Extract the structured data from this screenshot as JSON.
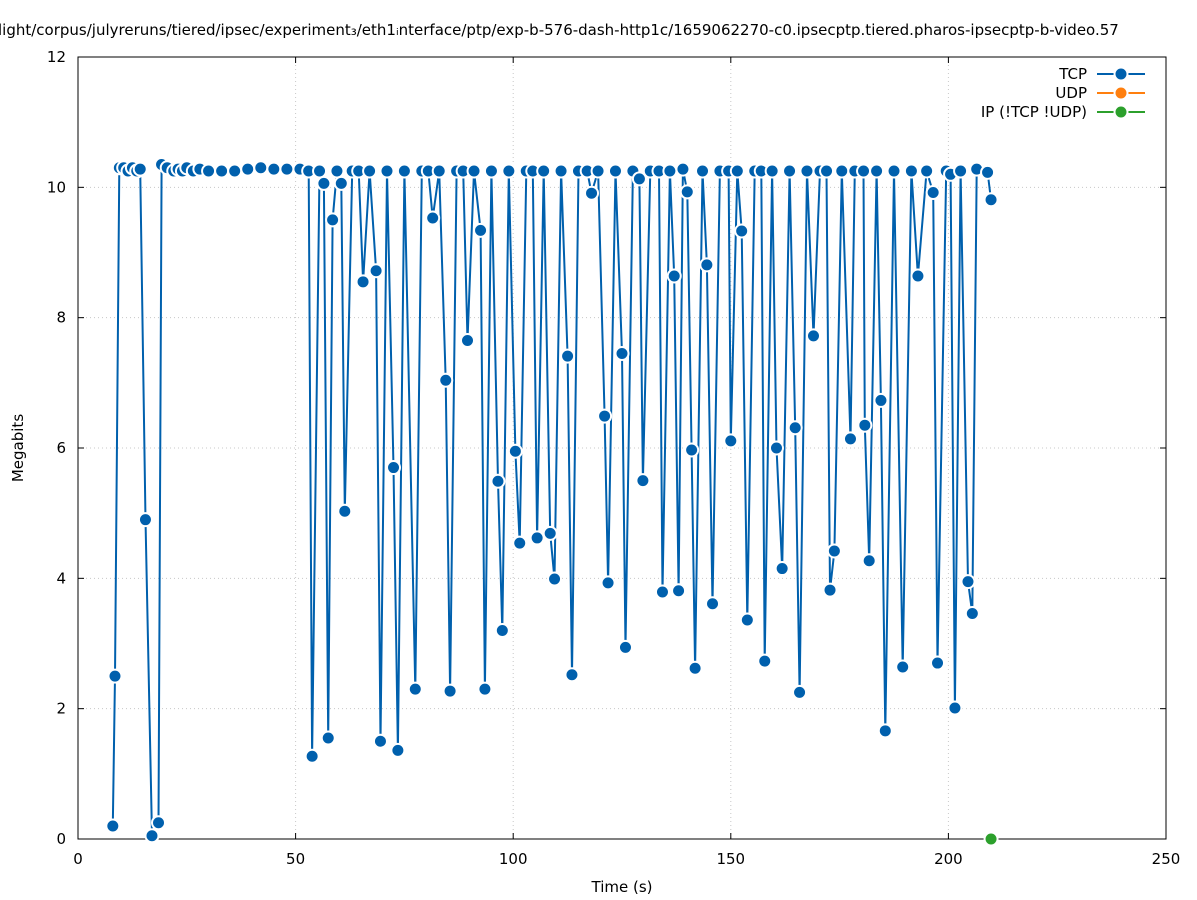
{
  "chart_data": {
    "type": "line",
    "title": "light/corpus/julyreruns/tiered/ipsec/experiment₃/eth1ᵢnterface/ptp/exp-b-576-dash-http1c/1659062270-c0.ipsecptp.tiered.pharos-ipsecptp-b-video.57",
    "xlabel": "Time (s)",
    "ylabel": "Megabits",
    "xlim": [
      0,
      250
    ],
    "ylim": [
      0,
      12
    ],
    "x_ticks": [
      "0",
      "50",
      "100",
      "150",
      "200",
      "250"
    ],
    "y_ticks": [
      "0",
      "2",
      "4",
      "6",
      "8",
      "10",
      "12"
    ],
    "grid": true,
    "legend_position": "top-right",
    "series": [
      {
        "name": "TCP",
        "color": "#0060ad",
        "points": [
          [
            8,
            0.2
          ],
          [
            8.5,
            2.5
          ],
          [
            9.5,
            10.3
          ],
          [
            10.5,
            10.3
          ],
          [
            11.5,
            10.25
          ],
          [
            12.5,
            10.3
          ],
          [
            13.5,
            10.25
          ],
          [
            14.3,
            10.28
          ],
          [
            15.5,
            4.9
          ],
          [
            17,
            0.05
          ],
          [
            18.5,
            0.25
          ],
          [
            19.2,
            10.35
          ],
          [
            20.5,
            10.3
          ],
          [
            22,
            10.25
          ],
          [
            23,
            10.28
          ],
          [
            24,
            10.25
          ],
          [
            25,
            10.3
          ],
          [
            26.5,
            10.25
          ],
          [
            28,
            10.28
          ],
          [
            30,
            10.25
          ],
          [
            33,
            10.25
          ],
          [
            36,
            10.25
          ],
          [
            39,
            10.28
          ],
          [
            42,
            10.3
          ],
          [
            45,
            10.28
          ],
          [
            48,
            10.28
          ],
          [
            51,
            10.28
          ],
          [
            53,
            10.25
          ],
          [
            53.8,
            1.27
          ],
          [
            55.5,
            10.25
          ],
          [
            56.5,
            10.06
          ],
          [
            57.5,
            1.55
          ],
          [
            58.5,
            9.5
          ],
          [
            59.5,
            10.25
          ],
          [
            60.5,
            10.06
          ],
          [
            61.3,
            5.03
          ],
          [
            63,
            10.25
          ],
          [
            64.5,
            10.25
          ],
          [
            65.5,
            8.55
          ],
          [
            67,
            10.25
          ],
          [
            68.5,
            8.72
          ],
          [
            69.5,
            1.5
          ],
          [
            71,
            10.25
          ],
          [
            72.5,
            5.7
          ],
          [
            73.5,
            1.36
          ],
          [
            75,
            10.25
          ],
          [
            77.5,
            2.3
          ],
          [
            79,
            10.25
          ],
          [
            80.5,
            10.25
          ],
          [
            81.5,
            9.53
          ],
          [
            83,
            10.25
          ],
          [
            84.5,
            7.04
          ],
          [
            85.5,
            2.27
          ],
          [
            87,
            10.25
          ],
          [
            88.5,
            10.25
          ],
          [
            89.5,
            7.65
          ],
          [
            91,
            10.25
          ],
          [
            92.5,
            9.34
          ],
          [
            93.5,
            2.3
          ],
          [
            95,
            10.25
          ],
          [
            96.5,
            5.49
          ],
          [
            97.5,
            3.2
          ],
          [
            99,
            10.25
          ],
          [
            100.5,
            5.95
          ],
          [
            101.5,
            4.54
          ],
          [
            103,
            10.25
          ],
          [
            104.5,
            10.25
          ],
          [
            105.5,
            4.62
          ],
          [
            107,
            10.25
          ],
          [
            108.5,
            4.69
          ],
          [
            109.5,
            3.99
          ],
          [
            111,
            10.25
          ],
          [
            112.5,
            7.41
          ],
          [
            113.5,
            2.52
          ],
          [
            115,
            10.25
          ],
          [
            117,
            10.25
          ],
          [
            118,
            9.91
          ],
          [
            119.5,
            10.25
          ],
          [
            121,
            6.49
          ],
          [
            121.8,
            3.93
          ],
          [
            123.5,
            10.25
          ],
          [
            125,
            7.45
          ],
          [
            125.8,
            2.94
          ],
          [
            127.5,
            10.25
          ],
          [
            129,
            10.13
          ],
          [
            129.8,
            5.5
          ],
          [
            131.5,
            10.25
          ],
          [
            133.5,
            10.25
          ],
          [
            134.3,
            3.79
          ],
          [
            136,
            10.25
          ],
          [
            137,
            8.64
          ],
          [
            138,
            3.81
          ],
          [
            139,
            10.28
          ],
          [
            140,
            9.93
          ],
          [
            141,
            5.97
          ],
          [
            141.8,
            2.62
          ],
          [
            143.5,
            10.25
          ],
          [
            144.5,
            8.81
          ],
          [
            145.8,
            3.61
          ],
          [
            147.5,
            10.25
          ],
          [
            149.5,
            10.25
          ],
          [
            150,
            6.11
          ],
          [
            151.5,
            10.25
          ],
          [
            152.5,
            9.33
          ],
          [
            153.8,
            3.36
          ],
          [
            155.5,
            10.25
          ],
          [
            157,
            10.25
          ],
          [
            157.8,
            2.73
          ],
          [
            159.5,
            10.25
          ],
          [
            160.5,
            6.0
          ],
          [
            161.8,
            4.15
          ],
          [
            163.5,
            10.25
          ],
          [
            164.8,
            6.31
          ],
          [
            165.8,
            2.25
          ],
          [
            167.5,
            10.25
          ],
          [
            169,
            7.72
          ],
          [
            170.5,
            10.25
          ],
          [
            172,
            10.25
          ],
          [
            172.8,
            3.82
          ],
          [
            173.8,
            4.42
          ],
          [
            175.5,
            10.25
          ],
          [
            177.5,
            6.14
          ],
          [
            178.5,
            10.25
          ],
          [
            180.5,
            10.25
          ],
          [
            180.8,
            6.35
          ],
          [
            181.8,
            4.27
          ],
          [
            183.5,
            10.25
          ],
          [
            184.5,
            6.73
          ],
          [
            185.5,
            1.66
          ],
          [
            187.5,
            10.25
          ],
          [
            189.5,
            2.64
          ],
          [
            191.5,
            10.25
          ],
          [
            193,
            8.64
          ],
          [
            195,
            10.25
          ],
          [
            196.5,
            9.92
          ],
          [
            197.5,
            2.7
          ],
          [
            199.5,
            10.25
          ],
          [
            200.5,
            10.2
          ],
          [
            201.5,
            2.01
          ],
          [
            202.8,
            10.25
          ],
          [
            204.5,
            3.95
          ],
          [
            205.5,
            3.46
          ],
          [
            206.5,
            10.28
          ],
          [
            209,
            10.23
          ],
          [
            209.8,
            9.81
          ]
        ]
      },
      {
        "name": "UDP",
        "color": "#ff7f0e",
        "points": []
      },
      {
        "name": "IP (!TCP  !UDP)",
        "color": "#2ca02c",
        "points": [
          [
            209.8,
            0.0
          ]
        ]
      }
    ]
  }
}
